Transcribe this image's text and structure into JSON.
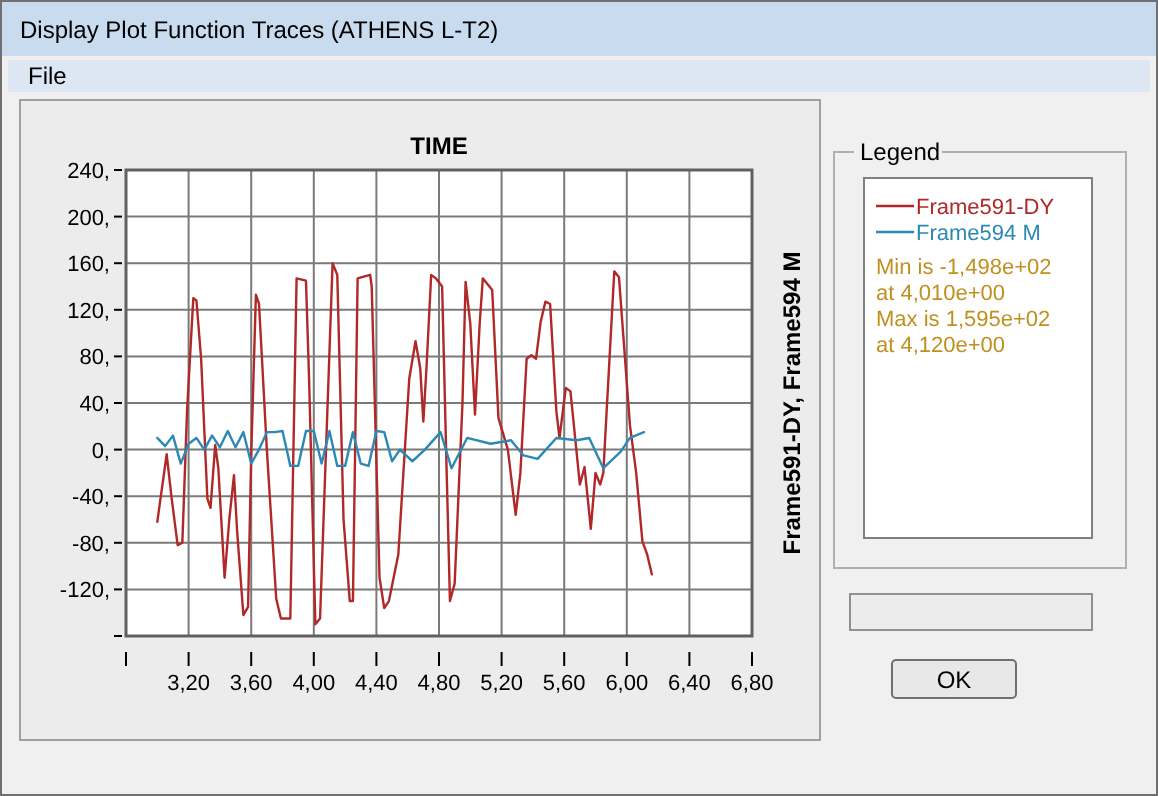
{
  "chart_data": {
    "type": "line",
    "xlabel": "TIME",
    "ylabel": "Frame591-DY, Frame594 M",
    "legend_title": "Legend",
    "legend": "right",
    "grid": true,
    "annotations": [
      "Display Plot Function Traces  (ATHENS L-T2)",
      "File",
      "Min is -1,498e+02",
      "at 4,010e+00",
      "Max is 1,595e+02",
      "at 4,120e+00",
      "OK"
    ],
    "xlim": [
      2.8,
      6.8
    ],
    "xticks": [
      {
        "value": 2.8,
        "label": null
      },
      {
        "value": 3.2,
        "label": "3,20"
      },
      {
        "value": 3.6,
        "label": "3,60"
      },
      {
        "value": 4.0,
        "label": "4,00"
      },
      {
        "value": 4.4,
        "label": "4,40"
      },
      {
        "value": 4.8,
        "label": "4,80"
      },
      {
        "value": 5.2,
        "label": "5,20"
      },
      {
        "value": 5.6,
        "label": "5,60"
      },
      {
        "value": 6.0,
        "label": "6,00"
      },
      {
        "value": 6.4,
        "label": "6,40"
      },
      {
        "value": 6.8,
        "label": "6,80"
      }
    ],
    "ylim": [
      -160,
      240
    ],
    "yticks": [
      {
        "value": -160,
        "label": null
      },
      {
        "value": -120,
        "label": "-120,"
      },
      {
        "value": -80,
        "label": "-80,"
      },
      {
        "value": -40,
        "label": "-40,"
      },
      {
        "value": 0,
        "label": "0,"
      },
      {
        "value": 40,
        "label": "40,"
      },
      {
        "value": 80,
        "label": "80,"
      },
      {
        "value": 120,
        "label": "120,"
      },
      {
        "value": 160,
        "label": "160,"
      },
      {
        "value": 200,
        "label": "200,"
      },
      {
        "value": 240,
        "label": "240,"
      }
    ],
    "series": [
      {
        "name": "Frame591-DY",
        "color": "#b02828",
        "x": [
          3.0,
          3.06,
          3.09,
          3.13,
          3.16,
          3.19,
          3.23,
          3.25,
          3.28,
          3.32,
          3.34,
          3.37,
          3.39,
          3.43,
          3.46,
          3.49,
          3.51,
          3.55,
          3.58,
          3.6,
          3.63,
          3.65,
          3.7,
          3.76,
          3.79,
          3.85,
          3.89,
          3.95,
          3.97,
          4.01,
          4.04,
          4.12,
          4.15,
          4.19,
          4.23,
          4.25,
          4.28,
          4.36,
          4.37,
          4.42,
          4.45,
          4.48,
          4.54,
          4.61,
          4.65,
          4.68,
          4.7,
          4.72,
          4.75,
          4.78,
          4.82,
          4.85,
          4.87,
          4.9,
          4.95,
          4.97,
          5.0,
          5.03,
          5.06,
          5.08,
          5.14,
          5.18,
          5.24,
          5.29,
          5.32,
          5.36,
          5.39,
          5.42,
          5.45,
          5.48,
          5.51,
          5.55,
          5.57,
          5.61,
          5.64,
          5.67,
          5.7,
          5.73,
          5.77,
          5.8,
          5.83,
          5.85,
          5.87,
          5.92,
          5.95,
          6.02,
          6.06,
          6.1,
          6.13,
          6.16
        ],
        "values": [
          -62,
          -4,
          -40,
          -82,
          -80,
          33,
          130,
          128,
          78,
          -42,
          -50,
          4,
          -16,
          -110,
          -60,
          -22,
          -70,
          -142,
          -135,
          -5,
          133,
          125,
          0,
          -128,
          -145,
          -145,
          147,
          145,
          60,
          -150,
          -145,
          160,
          150,
          -60,
          -130,
          -130,
          147,
          150,
          140,
          -110,
          -136,
          -130,
          -90,
          61,
          93,
          70,
          24,
          70,
          150,
          147,
          140,
          -25,
          -130,
          -115,
          40,
          144,
          108,
          30,
          108,
          147,
          137,
          27,
          0,
          -56,
          -20,
          78,
          81,
          78,
          110,
          127,
          125,
          33,
          10,
          53,
          50,
          10,
          -30,
          -15,
          -68,
          -20,
          -30,
          -20,
          30,
          153,
          148,
          21,
          -20,
          -79,
          -90,
          -107
        ]
      },
      {
        "name": "Frame594 M",
        "color": "#2c88b4",
        "x": [
          3.0,
          3.05,
          3.1,
          3.15,
          3.2,
          3.25,
          3.3,
          3.35,
          3.4,
          3.45,
          3.5,
          3.55,
          3.6,
          3.65,
          3.7,
          3.75,
          3.8,
          3.85,
          3.9,
          3.95,
          4.0,
          4.05,
          4.1,
          4.15,
          4.2,
          4.25,
          4.3,
          4.35,
          4.4,
          4.45,
          4.5,
          4.55,
          4.63,
          4.71,
          4.81,
          4.88,
          4.98,
          5.13,
          5.26,
          5.34,
          5.43,
          5.55,
          5.68,
          5.76,
          5.85,
          5.96,
          6.02,
          6.11
        ],
        "values": [
          10,
          3,
          12,
          -12,
          5,
          10,
          0,
          12,
          2,
          16,
          2,
          15,
          -12,
          0,
          15,
          15,
          16,
          -14,
          -14,
          16,
          16,
          -12,
          16,
          -14,
          -14,
          15,
          -12,
          -14,
          16,
          15,
          -10,
          0,
          -10,
          0,
          15,
          -16,
          10,
          5,
          8,
          -5,
          -8,
          10,
          8,
          10,
          -16,
          -2,
          10,
          15
        ]
      }
    ]
  }
}
